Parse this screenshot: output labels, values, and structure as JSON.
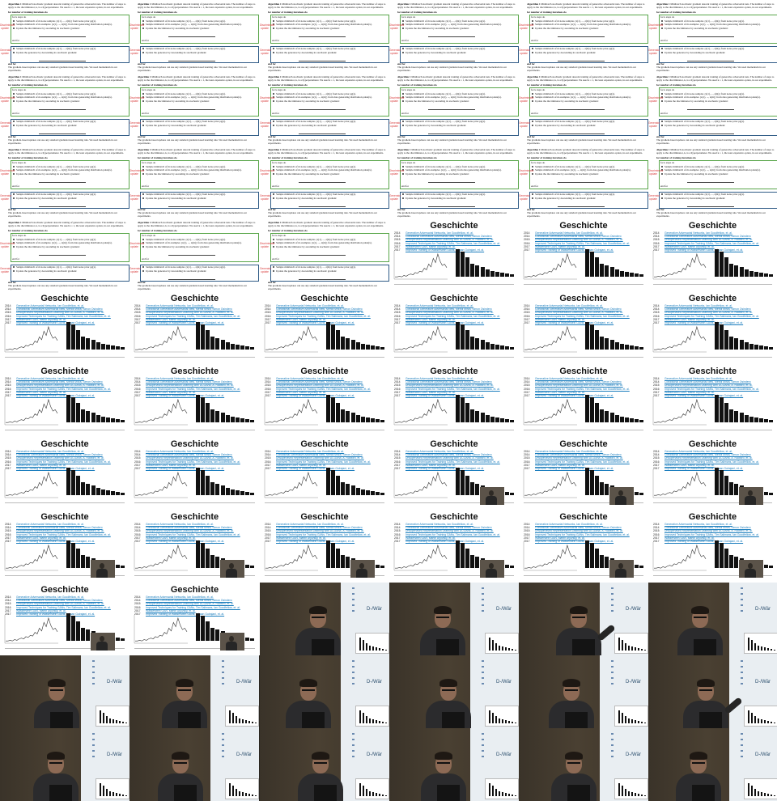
{
  "sheet": {
    "columns": 6,
    "rows": 11,
    "tiles": [
      "algo",
      "algo",
      "algo",
      "algo",
      "algo",
      "algo",
      "algo",
      "algo",
      "algo",
      "algo",
      "algo",
      "algo",
      "algo",
      "algo",
      "algo",
      "algo",
      "algo",
      "algo",
      "algo",
      "algo",
      "algo",
      "hist",
      "hist",
      "hist",
      "hist",
      "hist",
      "hist",
      "hist",
      "hist",
      "hist",
      "hist",
      "hist",
      "hist",
      "hist",
      "hist",
      "hist",
      "hist",
      "hist",
      "hist",
      "hist-inset",
      "hist-inset",
      "hist-inset",
      "hist-inset",
      "hist-inset",
      "hist-inset",
      "hist-inset",
      "hist-inset",
      "hist-inset",
      "hist-inset",
      "hist-inset",
      "lecture",
      "lecture",
      "lecture",
      "lecture",
      "lecture",
      "lecture",
      "lecture",
      "lecture",
      "lecture",
      "lecture",
      "lecture",
      "lecture",
      "lecture",
      "lecture",
      "lecture",
      "lecture"
    ]
  },
  "algo_slide": {
    "caption_prefix": "Algorithm 1",
    "caption": "Minibatch stochastic gradient descent training of generative adversarial nets. The number of steps to apply to the discriminator, k, is a hyperparameter. We used k = 1, the least expensive option, in our experiments.",
    "for_loop": "for number of training iterations do",
    "for_k": "for k steps do",
    "noise_step": "Sample minibatch of m noise samples {z(1), ..., z(m)} from noise prior pg(z).",
    "data_step": "Sample minibatch of m examples {x(1), ..., x(m)} from data generating distribution pdata(x).",
    "disc_update": "Update the discriminator by ascending its stochastic gradient:",
    "end_for": "end for",
    "gen_noise": "Sample minibatch of m noise samples {z(1), ..., z(m)} from noise prior pg(z).",
    "gen_update": "Update the generator by descending its stochastic gradient:",
    "end_for_2": "end for",
    "footer": "The gradient-based updates can use any standard gradient-based learning rule. We used momentum in our experiments.",
    "side_disc": "Discriminator update",
    "side_gen": "Generator update",
    "colors": {
      "disc_box": "#59a64a",
      "gen_box": "#2f5b86",
      "side_label": "#d83c3c"
    }
  },
  "hist_slide": {
    "title": "Geschichte",
    "refs": [
      {
        "year": "2014",
        "text": "Generative Adversarial Networks, Ian Goodfellow, et. al."
      },
      {
        "year": "2014",
        "text": "Conditional Generative Adversarial Nets, Mehdi Mirza, Simon Osindero"
      },
      {
        "year": "2015",
        "text": "Unsupervised Representation Learning with DCGANs, A. Radford, et. al."
      },
      {
        "year": "2016",
        "text": "Improved Techniques for Training GANs, Tim Salimans, Ian Goodfellow, et. al."
      },
      {
        "year": "2017",
        "text": "Wasserstein GAN, Martin Arjovsky, et. al."
      },
      {
        "year": "2017",
        "text": "Improved Training of Wasserstein GANs, Ishaan Gulrajani, et. al."
      }
    ],
    "line_series": [
      2,
      2,
      3,
      2,
      4,
      3,
      5,
      6,
      5,
      8,
      7,
      10,
      9,
      14,
      12,
      20,
      16,
      28,
      22,
      34,
      24,
      18,
      20,
      15
    ],
    "bar_values": [
      100,
      92,
      70,
      48,
      40,
      34,
      26,
      20,
      17,
      14,
      12,
      10
    ],
    "link_color": "#1a7dbd"
  },
  "lecture": {
    "screen_text": "D-/Wär",
    "screen_bar_values": [
      100,
      80,
      55,
      40,
      30,
      22,
      16,
      12,
      9
    ],
    "colors": {
      "screen": "#e9eef2",
      "wall": "#4a4032",
      "shirt": "#2b2b2d"
    }
  }
}
